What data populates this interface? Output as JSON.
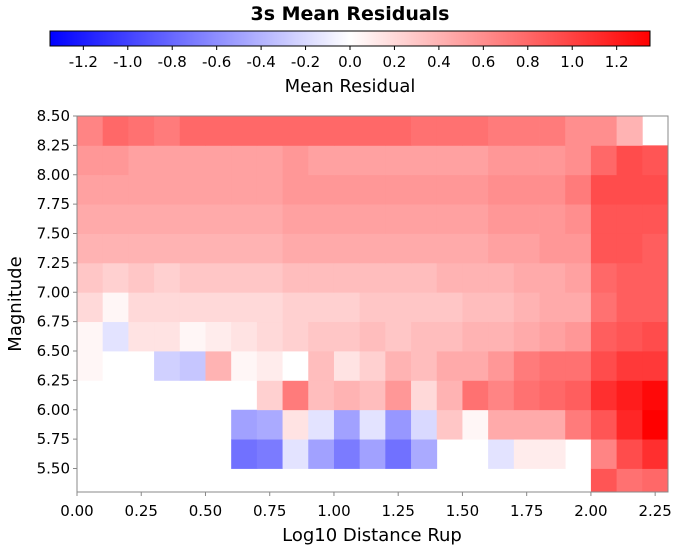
{
  "chart_data": {
    "type": "heatmap",
    "title": "3s Mean Residuals",
    "xlabel": "Log10 Distance Rup",
    "ylabel": "Magnitude",
    "colorbar": {
      "label": "Mean Residual",
      "range": [
        -1.35,
        1.35
      ],
      "ticks": [
        "-1.2",
        "-1.0",
        "-0.8",
        "-0.6",
        "-0.4",
        "-0.2",
        "0.0",
        "0.2",
        "0.4",
        "0.6",
        "0.8",
        "1.0",
        "1.2"
      ],
      "colors": {
        "negative": "#0000ff",
        "zero": "#ffffff",
        "positive": "#ff0000"
      }
    },
    "xlim": [
      0.0,
      2.3
    ],
    "ylim": [
      5.3,
      8.5
    ],
    "xticks": [
      "0.00",
      "0.25",
      "0.50",
      "0.75",
      "1.00",
      "1.25",
      "1.50",
      "1.75",
      "2.00",
      "2.25"
    ],
    "yticks": [
      "5.50",
      "5.75",
      "6.00",
      "6.25",
      "6.50",
      "6.75",
      "7.00",
      "7.25",
      "7.50",
      "7.75",
      "8.00",
      "8.25",
      "8.50"
    ],
    "cell_size": {
      "x": 0.1,
      "y": 0.25
    },
    "x_bin_centers": [
      0.05,
      0.15,
      0.25,
      0.35,
      0.45,
      0.55,
      0.65,
      0.75,
      0.85,
      0.95,
      1.05,
      1.15,
      1.25,
      1.35,
      1.45,
      1.55,
      1.65,
      1.75,
      1.85,
      1.95,
      2.05,
      2.15,
      2.25
    ],
    "y_bin_centers": [
      5.375,
      5.625,
      5.875,
      6.125,
      6.375,
      6.625,
      6.875,
      7.125,
      7.375,
      7.625,
      7.875,
      8.125,
      8.375
    ],
    "values_by_magnitude_row": [
      [
        null,
        null,
        null,
        null,
        null,
        null,
        null,
        null,
        null,
        null,
        null,
        null,
        null,
        null,
        null,
        null,
        null,
        null,
        null,
        null,
        0.9,
        0.75,
        0.8
      ],
      [
        null,
        null,
        null,
        null,
        null,
        null,
        -0.75,
        -0.7,
        -0.15,
        -0.5,
        -0.7,
        -0.5,
        -0.75,
        -0.45,
        null,
        null,
        -0.15,
        0.1,
        0.1,
        null,
        0.65,
        0.95,
        1.1
      ],
      [
        null,
        null,
        null,
        null,
        null,
        null,
        -0.5,
        -0.45,
        0.15,
        -0.15,
        -0.5,
        -0.15,
        -0.55,
        -0.2,
        0.3,
        0.05,
        0.45,
        0.45,
        0.45,
        0.7,
        0.9,
        1.15,
        1.35
      ],
      [
        null,
        null,
        null,
        null,
        null,
        null,
        null,
        0.25,
        0.7,
        0.35,
        0.4,
        0.35,
        0.55,
        0.2,
        0.4,
        0.75,
        0.65,
        0.75,
        0.8,
        0.85,
        1.1,
        1.2,
        1.3
      ],
      [
        0.05,
        0.0,
        0.0,
        -0.25,
        -0.3,
        0.4,
        0.05,
        0.1,
        0.0,
        0.35,
        0.15,
        0.25,
        0.4,
        0.35,
        0.45,
        0.45,
        0.55,
        0.7,
        0.75,
        0.75,
        0.95,
        1.05,
        1.05
      ],
      [
        0.05,
        -0.15,
        0.15,
        0.15,
        0.05,
        0.1,
        0.15,
        0.2,
        0.25,
        0.3,
        0.3,
        0.35,
        0.3,
        0.35,
        0.35,
        0.4,
        0.4,
        0.45,
        0.5,
        0.55,
        0.85,
        0.9,
        0.95
      ],
      [
        0.2,
        0.05,
        0.2,
        0.2,
        0.2,
        0.2,
        0.2,
        0.2,
        0.25,
        0.25,
        0.25,
        0.3,
        0.3,
        0.3,
        0.3,
        0.35,
        0.35,
        0.4,
        0.45,
        0.45,
        0.75,
        0.85,
        0.85
      ],
      [
        0.3,
        0.25,
        0.3,
        0.25,
        0.3,
        0.3,
        0.3,
        0.3,
        0.35,
        0.35,
        0.35,
        0.35,
        0.35,
        0.35,
        0.4,
        0.4,
        0.4,
        0.45,
        0.45,
        0.5,
        0.8,
        0.85,
        0.85
      ],
      [
        0.4,
        0.4,
        0.4,
        0.4,
        0.4,
        0.4,
        0.4,
        0.4,
        0.45,
        0.45,
        0.45,
        0.45,
        0.45,
        0.45,
        0.45,
        0.45,
        0.5,
        0.5,
        0.55,
        0.55,
        0.9,
        0.9,
        0.85
      ],
      [
        0.45,
        0.45,
        0.45,
        0.45,
        0.45,
        0.45,
        0.45,
        0.45,
        0.5,
        0.5,
        0.5,
        0.5,
        0.5,
        0.5,
        0.5,
        0.5,
        0.55,
        0.55,
        0.55,
        0.6,
        0.9,
        0.9,
        0.9
      ],
      [
        0.5,
        0.5,
        0.5,
        0.5,
        0.5,
        0.5,
        0.5,
        0.5,
        0.55,
        0.55,
        0.55,
        0.55,
        0.55,
        0.55,
        0.55,
        0.55,
        0.6,
        0.6,
        0.6,
        0.7,
        0.95,
        0.95,
        0.95
      ],
      [
        0.55,
        0.55,
        0.5,
        0.5,
        0.5,
        0.5,
        0.5,
        0.5,
        0.55,
        0.5,
        0.5,
        0.5,
        0.5,
        0.5,
        0.5,
        0.5,
        0.55,
        0.55,
        0.55,
        0.6,
        0.8,
        0.95,
        0.9
      ],
      [
        0.65,
        0.8,
        0.75,
        0.7,
        0.8,
        0.8,
        0.8,
        0.8,
        0.8,
        0.8,
        0.8,
        0.8,
        0.8,
        0.75,
        0.75,
        0.75,
        0.7,
        0.7,
        0.7,
        0.6,
        0.6,
        0.4,
        null
      ]
    ]
  }
}
